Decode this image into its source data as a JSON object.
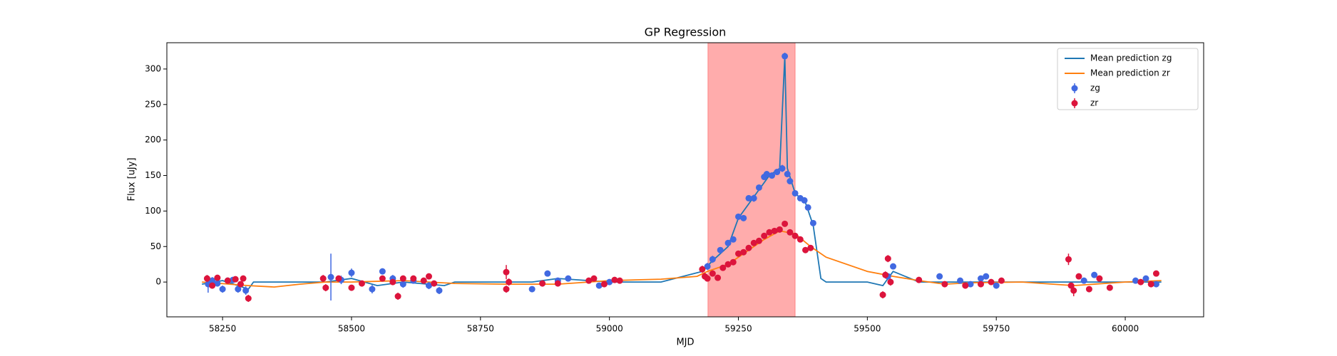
{
  "chart_data": {
    "type": "line",
    "title": "GP Regression",
    "x_label": "MJD",
    "y_label": "Flux [uJy]",
    "xlim": [
      58142,
      60152
    ],
    "ylim": [
      -49,
      337
    ],
    "xticks": [
      58250,
      58500,
      58750,
      59000,
      59250,
      59500,
      59750,
      60000
    ],
    "yticks": [
      0,
      50,
      100,
      150,
      200,
      250,
      300
    ],
    "legend": "upper right",
    "span": {
      "x0": 59191,
      "x1": 59360,
      "color": "#ff5a5a"
    },
    "series": [
      {
        "name": "Mean prediction zg",
        "type": "line",
        "color": "#1f77b4",
        "x": [
          58210,
          58250,
          58280,
          58300,
          58310,
          58450,
          58500,
          58550,
          58600,
          58680,
          58700,
          58800,
          58850,
          58900,
          59000,
          59100,
          59180,
          59200,
          59230,
          59250,
          59270,
          59290,
          59310,
          59330,
          59340,
          59345,
          59360,
          59380,
          59395,
          59410,
          59420,
          59500,
          59530,
          59550,
          59600,
          59700,
          59750,
          59900,
          60000,
          60070
        ],
        "values": [
          -3,
          2,
          -5,
          -10,
          0,
          0,
          5,
          -5,
          0,
          -5,
          0,
          0,
          0,
          5,
          0,
          0,
          15,
          30,
          50,
          90,
          110,
          130,
          150,
          160,
          318,
          160,
          125,
          112,
          80,
          5,
          0,
          0,
          -5,
          15,
          0,
          0,
          0,
          0,
          0,
          0
        ]
      },
      {
        "name": "Mean prediction zr",
        "type": "line",
        "color": "#ff7f0e",
        "x": [
          58210,
          58300,
          58350,
          58400,
          58450,
          58500,
          58600,
          58700,
          58800,
          58900,
          59000,
          59100,
          59170,
          59190,
          59230,
          59270,
          59300,
          59330,
          59360,
          59390,
          59420,
          59500,
          59550,
          59600,
          59650,
          59700,
          59800,
          59900,
          60000,
          60070
        ],
        "values": [
          0,
          -5,
          -7,
          -3,
          0,
          0,
          2,
          -2,
          -3,
          -3,
          2,
          4,
          8,
          15,
          25,
          45,
          60,
          72,
          68,
          50,
          35,
          15,
          8,
          2,
          -3,
          -1,
          0,
          -5,
          0,
          2
        ]
      },
      {
        "name": "zg",
        "type": "errorbar",
        "color": "#4169e1",
        "x": [
          58222,
          58230,
          58240,
          58250,
          58260,
          58270,
          58280,
          58295,
          58460,
          58480,
          58500,
          58540,
          58560,
          58580,
          58600,
          58620,
          58650,
          58670,
          58850,
          58880,
          58900,
          58920,
          58980,
          59000,
          59190,
          59200,
          59215,
          59230,
          59240,
          59250,
          59260,
          59270,
          59280,
          59290,
          59300,
          59305,
          59315,
          59325,
          59335,
          59340,
          59345,
          59350,
          59360,
          59370,
          59378,
          59385,
          59395,
          59540,
          59550,
          59640,
          59680,
          59700,
          59720,
          59730,
          59750,
          59920,
          59940,
          60020,
          60040,
          60060
        ],
        "values": [
          -3,
          2,
          -2,
          -10,
          2,
          3,
          -10,
          -12,
          7,
          3,
          13,
          -10,
          15,
          5,
          -3,
          2,
          -5,
          -12,
          -10,
          12,
          2,
          5,
          -5,
          0,
          22,
          32,
          45,
          55,
          60,
          92,
          90,
          118,
          118,
          133,
          148,
          152,
          150,
          155,
          160,
          318,
          152,
          142,
          125,
          118,
          115,
          105,
          83,
          8,
          22,
          8,
          2,
          -3,
          5,
          8,
          -5,
          2,
          10,
          2,
          5,
          -3
        ],
        "errors": [
          12,
          5,
          4,
          5,
          4,
          3,
          5,
          6,
          33,
          6,
          6,
          6,
          4,
          5,
          5,
          4,
          5,
          5,
          4,
          4,
          3,
          3,
          4,
          3,
          5,
          5,
          4,
          4,
          4,
          4,
          4,
          4,
          5,
          4,
          4,
          4,
          4,
          4,
          5,
          5,
          4,
          4,
          4,
          4,
          4,
          4,
          4,
          4,
          4,
          4,
          4,
          4,
          4,
          4,
          4,
          4,
          4,
          4,
          4,
          4
        ]
      },
      {
        "name": "zr",
        "type": "errorbar",
        "color": "#dc143c",
        "x": [
          58220,
          58230,
          58240,
          58260,
          58275,
          58285,
          58290,
          58300,
          58445,
          58450,
          58475,
          58500,
          58520,
          58560,
          58580,
          58590,
          58600,
          58620,
          58640,
          58650,
          58660,
          58800,
          58800,
          58805,
          58870,
          58900,
          58960,
          58970,
          58990,
          59010,
          59020,
          59180,
          59185,
          59190,
          59200,
          59210,
          59220,
          59230,
          59240,
          59250,
          59260,
          59270,
          59280,
          59290,
          59300,
          59310,
          59320,
          59330,
          59340,
          59350,
          59360,
          59370,
          59380,
          59390,
          59530,
          59535,
          59540,
          59545,
          59600,
          59650,
          59690,
          59720,
          59740,
          59760,
          59890,
          59895,
          59900,
          59910,
          59930,
          59950,
          59970,
          60030,
          60050,
          60060
        ],
        "values": [
          5,
          -5,
          6,
          2,
          4,
          -3,
          5,
          -23,
          5,
          -8,
          5,
          -8,
          -2,
          5,
          0,
          -20,
          5,
          5,
          2,
          8,
          -2,
          -10,
          14,
          0,
          -2,
          -2,
          2,
          5,
          -3,
          3,
          2,
          18,
          8,
          5,
          12,
          6,
          20,
          25,
          28,
          40,
          42,
          48,
          55,
          58,
          65,
          70,
          72,
          74,
          82,
          70,
          65,
          60,
          45,
          48,
          -18,
          10,
          33,
          0,
          3,
          -3,
          -5,
          -3,
          0,
          2,
          32,
          -5,
          -12,
          8,
          -10,
          5,
          -8,
          0,
          -3,
          12
        ],
        "errors": [
          5,
          4,
          4,
          3,
          4,
          4,
          4,
          5,
          5,
          5,
          4,
          4,
          4,
          4,
          4,
          5,
          4,
          4,
          4,
          4,
          4,
          5,
          10,
          5,
          4,
          4,
          4,
          4,
          4,
          4,
          4,
          5,
          5,
          4,
          4,
          4,
          4,
          4,
          4,
          4,
          4,
          4,
          4,
          4,
          4,
          4,
          4,
          4,
          4,
          4,
          4,
          4,
          4,
          4,
          5,
          5,
          5,
          5,
          4,
          4,
          4,
          4,
          4,
          4,
          8,
          4,
          8,
          4,
          4,
          4,
          4,
          4,
          4,
          4
        ]
      }
    ]
  }
}
